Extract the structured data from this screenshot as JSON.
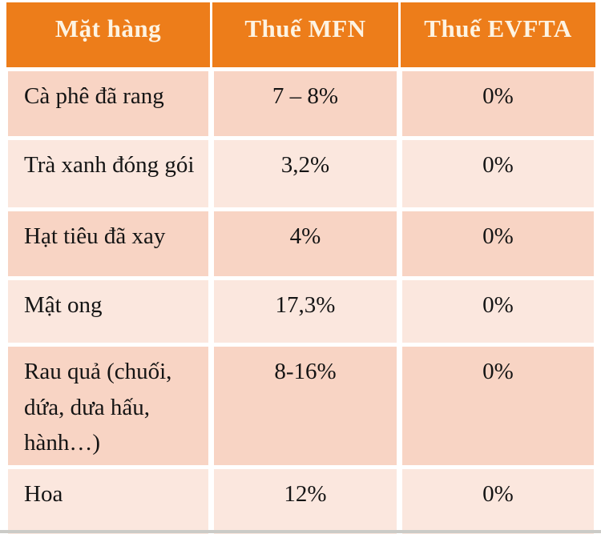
{
  "chart_data": {
    "type": "table",
    "title": "",
    "columns": [
      "Mặt hàng",
      "Thuế MFN",
      "Thuế EVFTA"
    ],
    "rows": [
      [
        "Cà phê đã rang",
        "7 – 8%",
        "0%"
      ],
      [
        "Trà xanh đóng gói",
        "3,2%",
        "0%"
      ],
      [
        "Hạt tiêu đã xay",
        "4%",
        "0%"
      ],
      [
        "Mật ong",
        "17,3%",
        "0%"
      ],
      [
        "Rau quả (chuối, dứa, dưa hấu, hành…)",
        "8-16%",
        "0%"
      ],
      [
        "Hoa",
        "12%",
        "0%"
      ]
    ],
    "layout": {
      "header_row": true,
      "row_banding": "alternating",
      "item_column_align": "left",
      "value_columns_align": "center"
    },
    "colors": {
      "header_bg": "#ED7D1A",
      "header_text": "#FDF3E2",
      "row_band_dark": "#F8D4C4",
      "row_band_light": "#FBE7DE",
      "body_text": "#141414",
      "separator": "#FFFFFF",
      "bottom_bar": "#CBCBC7"
    }
  }
}
